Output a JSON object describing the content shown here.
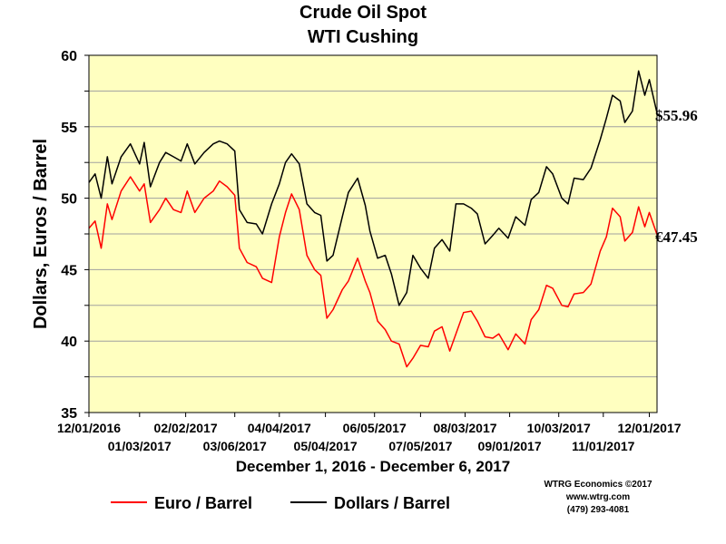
{
  "chart_data": {
    "type": "line",
    "title": "Crude Oil Spot",
    "subtitle": "WTI Cushing",
    "xlabel": "December 1, 2016 - December 6, 2017",
    "ylabel": "Dollars, Euros / Barrel",
    "ylim": [
      35,
      60
    ],
    "yticks": [
      "35",
      "40",
      "45",
      "50",
      "55",
      "60"
    ],
    "xlim": [
      "2016-12-01",
      "2017-12-06"
    ],
    "xticks": [
      {
        "date": "2016-12-01",
        "label": "12/01/2016",
        "row": 1
      },
      {
        "date": "2017-01-03",
        "label": "01/03/2017",
        "row": 2
      },
      {
        "date": "2017-02-02",
        "label": "02/02/2017",
        "row": 1
      },
      {
        "date": "2017-03-06",
        "label": "03/06/2017",
        "row": 2
      },
      {
        "date": "2017-04-04",
        "label": "04/04/2017",
        "row": 1
      },
      {
        "date": "2017-05-04",
        "label": "05/04/2017",
        "row": 2
      },
      {
        "date": "2017-06-05",
        "label": "06/05/2017",
        "row": 1
      },
      {
        "date": "2017-07-05",
        "label": "07/05/2017",
        "row": 2
      },
      {
        "date": "2017-08-03",
        "label": "08/03/2017",
        "row": 1
      },
      {
        "date": "2017-09-01",
        "label": "09/01/2017",
        "row": 2
      },
      {
        "date": "2017-10-03",
        "label": "10/03/2017",
        "row": 1
      },
      {
        "date": "2017-11-01",
        "label": "11/01/2017",
        "row": 2
      },
      {
        "date": "2017-12-01",
        "label": "12/01/2017",
        "row": 1
      }
    ],
    "grid": true,
    "legend_position": "bottom-left",
    "series": [
      {
        "name": "Dollars / Barrel",
        "color": "#000000",
        "end_label": "$55.96",
        "points": [
          [
            "2016-12-01",
            51.1
          ],
          [
            "2016-12-05",
            51.7
          ],
          [
            "2016-12-09",
            50.0
          ],
          [
            "2016-12-13",
            52.9
          ],
          [
            "2016-12-16",
            51.0
          ],
          [
            "2016-12-22",
            52.9
          ],
          [
            "2016-12-28",
            53.8
          ],
          [
            "2017-01-03",
            52.4
          ],
          [
            "2017-01-06",
            53.9
          ],
          [
            "2017-01-10",
            50.8
          ],
          [
            "2017-01-16",
            52.5
          ],
          [
            "2017-01-20",
            53.2
          ],
          [
            "2017-01-25",
            52.9
          ],
          [
            "2017-01-30",
            52.6
          ],
          [
            "2017-02-03",
            53.8
          ],
          [
            "2017-02-08",
            52.4
          ],
          [
            "2017-02-14",
            53.2
          ],
          [
            "2017-02-20",
            53.8
          ],
          [
            "2017-02-24",
            54.0
          ],
          [
            "2017-03-01",
            53.8
          ],
          [
            "2017-03-06",
            53.3
          ],
          [
            "2017-03-09",
            49.2
          ],
          [
            "2017-03-14",
            48.3
          ],
          [
            "2017-03-20",
            48.2
          ],
          [
            "2017-03-24",
            47.5
          ],
          [
            "2017-03-30",
            49.6
          ],
          [
            "2017-04-04",
            51.0
          ],
          [
            "2017-04-08",
            52.5
          ],
          [
            "2017-04-12",
            53.1
          ],
          [
            "2017-04-17",
            52.4
          ],
          [
            "2017-04-22",
            49.6
          ],
          [
            "2017-04-27",
            49.0
          ],
          [
            "2017-05-01",
            48.8
          ],
          [
            "2017-05-05",
            45.6
          ],
          [
            "2017-05-09",
            46.0
          ],
          [
            "2017-05-15",
            48.7
          ],
          [
            "2017-05-19",
            50.4
          ],
          [
            "2017-05-25",
            51.4
          ],
          [
            "2017-05-30",
            49.5
          ],
          [
            "2017-06-02",
            47.7
          ],
          [
            "2017-06-07",
            45.8
          ],
          [
            "2017-06-12",
            46.0
          ],
          [
            "2017-06-16",
            44.7
          ],
          [
            "2017-06-21",
            42.5
          ],
          [
            "2017-06-26",
            43.4
          ],
          [
            "2017-06-30",
            46.0
          ],
          [
            "2017-07-05",
            45.1
          ],
          [
            "2017-07-10",
            44.4
          ],
          [
            "2017-07-14",
            46.5
          ],
          [
            "2017-07-19",
            47.1
          ],
          [
            "2017-07-24",
            46.3
          ],
          [
            "2017-07-28",
            49.6
          ],
          [
            "2017-08-02",
            49.6
          ],
          [
            "2017-08-07",
            49.3
          ],
          [
            "2017-08-11",
            48.9
          ],
          [
            "2017-08-16",
            46.8
          ],
          [
            "2017-08-21",
            47.4
          ],
          [
            "2017-08-25",
            47.9
          ],
          [
            "2017-08-31",
            47.2
          ],
          [
            "2017-09-05",
            48.7
          ],
          [
            "2017-09-11",
            48.1
          ],
          [
            "2017-09-15",
            49.9
          ],
          [
            "2017-09-20",
            50.4
          ],
          [
            "2017-09-25",
            52.2
          ],
          [
            "2017-09-29",
            51.7
          ],
          [
            "2017-10-05",
            50.0
          ],
          [
            "2017-10-09",
            49.6
          ],
          [
            "2017-10-13",
            51.4
          ],
          [
            "2017-10-19",
            51.3
          ],
          [
            "2017-10-24",
            52.1
          ],
          [
            "2017-10-30",
            54.1
          ],
          [
            "2017-11-03",
            55.6
          ],
          [
            "2017-11-07",
            57.2
          ],
          [
            "2017-11-12",
            56.8
          ],
          [
            "2017-11-15",
            55.3
          ],
          [
            "2017-11-20",
            56.1
          ],
          [
            "2017-11-24",
            58.9
          ],
          [
            "2017-11-28",
            57.2
          ],
          [
            "2017-12-01",
            58.3
          ],
          [
            "2017-12-06",
            55.96
          ]
        ]
      },
      {
        "name": "Euro / Barrel",
        "color": "#ff0000",
        "end_label": "€47.45",
        "points": [
          [
            "2016-12-01",
            47.9
          ],
          [
            "2016-12-05",
            48.4
          ],
          [
            "2016-12-09",
            46.5
          ],
          [
            "2016-12-13",
            49.6
          ],
          [
            "2016-12-16",
            48.5
          ],
          [
            "2016-12-22",
            50.5
          ],
          [
            "2016-12-28",
            51.5
          ],
          [
            "2017-01-03",
            50.5
          ],
          [
            "2017-01-06",
            51.0
          ],
          [
            "2017-01-10",
            48.3
          ],
          [
            "2017-01-16",
            49.2
          ],
          [
            "2017-01-20",
            50.0
          ],
          [
            "2017-01-25",
            49.2
          ],
          [
            "2017-01-30",
            49.0
          ],
          [
            "2017-02-03",
            50.5
          ],
          [
            "2017-02-08",
            49.0
          ],
          [
            "2017-02-14",
            50.0
          ],
          [
            "2017-02-20",
            50.5
          ],
          [
            "2017-02-24",
            51.2
          ],
          [
            "2017-03-01",
            50.8
          ],
          [
            "2017-03-06",
            50.2
          ],
          [
            "2017-03-09",
            46.5
          ],
          [
            "2017-03-14",
            45.5
          ],
          [
            "2017-03-20",
            45.2
          ],
          [
            "2017-03-24",
            44.4
          ],
          [
            "2017-03-30",
            44.1
          ],
          [
            "2017-04-04",
            47.3
          ],
          [
            "2017-04-08",
            49.0
          ],
          [
            "2017-04-12",
            50.3
          ],
          [
            "2017-04-17",
            49.2
          ],
          [
            "2017-04-22",
            46.0
          ],
          [
            "2017-04-27",
            45.0
          ],
          [
            "2017-05-01",
            44.6
          ],
          [
            "2017-05-05",
            41.6
          ],
          [
            "2017-05-09",
            42.2
          ],
          [
            "2017-05-15",
            43.6
          ],
          [
            "2017-05-19",
            44.2
          ],
          [
            "2017-05-25",
            45.8
          ],
          [
            "2017-05-30",
            44.2
          ],
          [
            "2017-06-02",
            43.4
          ],
          [
            "2017-06-07",
            41.4
          ],
          [
            "2017-06-12",
            40.8
          ],
          [
            "2017-06-16",
            40.0
          ],
          [
            "2017-06-21",
            39.8
          ],
          [
            "2017-06-26",
            38.2
          ],
          [
            "2017-06-30",
            38.8
          ],
          [
            "2017-07-05",
            39.7
          ],
          [
            "2017-07-10",
            39.6
          ],
          [
            "2017-07-14",
            40.7
          ],
          [
            "2017-07-19",
            41.0
          ],
          [
            "2017-07-24",
            39.3
          ],
          [
            "2017-07-28",
            40.5
          ],
          [
            "2017-08-02",
            42.0
          ],
          [
            "2017-08-07",
            42.1
          ],
          [
            "2017-08-11",
            41.4
          ],
          [
            "2017-08-16",
            40.3
          ],
          [
            "2017-08-21",
            40.2
          ],
          [
            "2017-08-25",
            40.5
          ],
          [
            "2017-08-31",
            39.4
          ],
          [
            "2017-09-05",
            40.5
          ],
          [
            "2017-09-11",
            39.8
          ],
          [
            "2017-09-15",
            41.5
          ],
          [
            "2017-09-20",
            42.2
          ],
          [
            "2017-09-25",
            43.9
          ],
          [
            "2017-09-29",
            43.7
          ],
          [
            "2017-10-05",
            42.5
          ],
          [
            "2017-10-09",
            42.4
          ],
          [
            "2017-10-13",
            43.3
          ],
          [
            "2017-10-19",
            43.4
          ],
          [
            "2017-10-24",
            44.0
          ],
          [
            "2017-10-30",
            46.3
          ],
          [
            "2017-11-03",
            47.3
          ],
          [
            "2017-11-07",
            49.3
          ],
          [
            "2017-11-12",
            48.7
          ],
          [
            "2017-11-15",
            47.0
          ],
          [
            "2017-11-20",
            47.6
          ],
          [
            "2017-11-24",
            49.4
          ],
          [
            "2017-11-28",
            48.0
          ],
          [
            "2017-12-01",
            49.0
          ],
          [
            "2017-12-06",
            47.45
          ]
        ]
      }
    ],
    "legend": [
      {
        "label": "Euro / Barrel",
        "color": "#ff0000"
      },
      {
        "label": "Dollars / Barrel",
        "color": "#000000"
      }
    ],
    "plot_background": "#ffffc0",
    "gridline_color": "#a0a0a0"
  },
  "credits": {
    "line1": "WTRG Economics  ©2017",
    "line2": "www.wtrg.com",
    "line3": "(479) 293-4081"
  }
}
